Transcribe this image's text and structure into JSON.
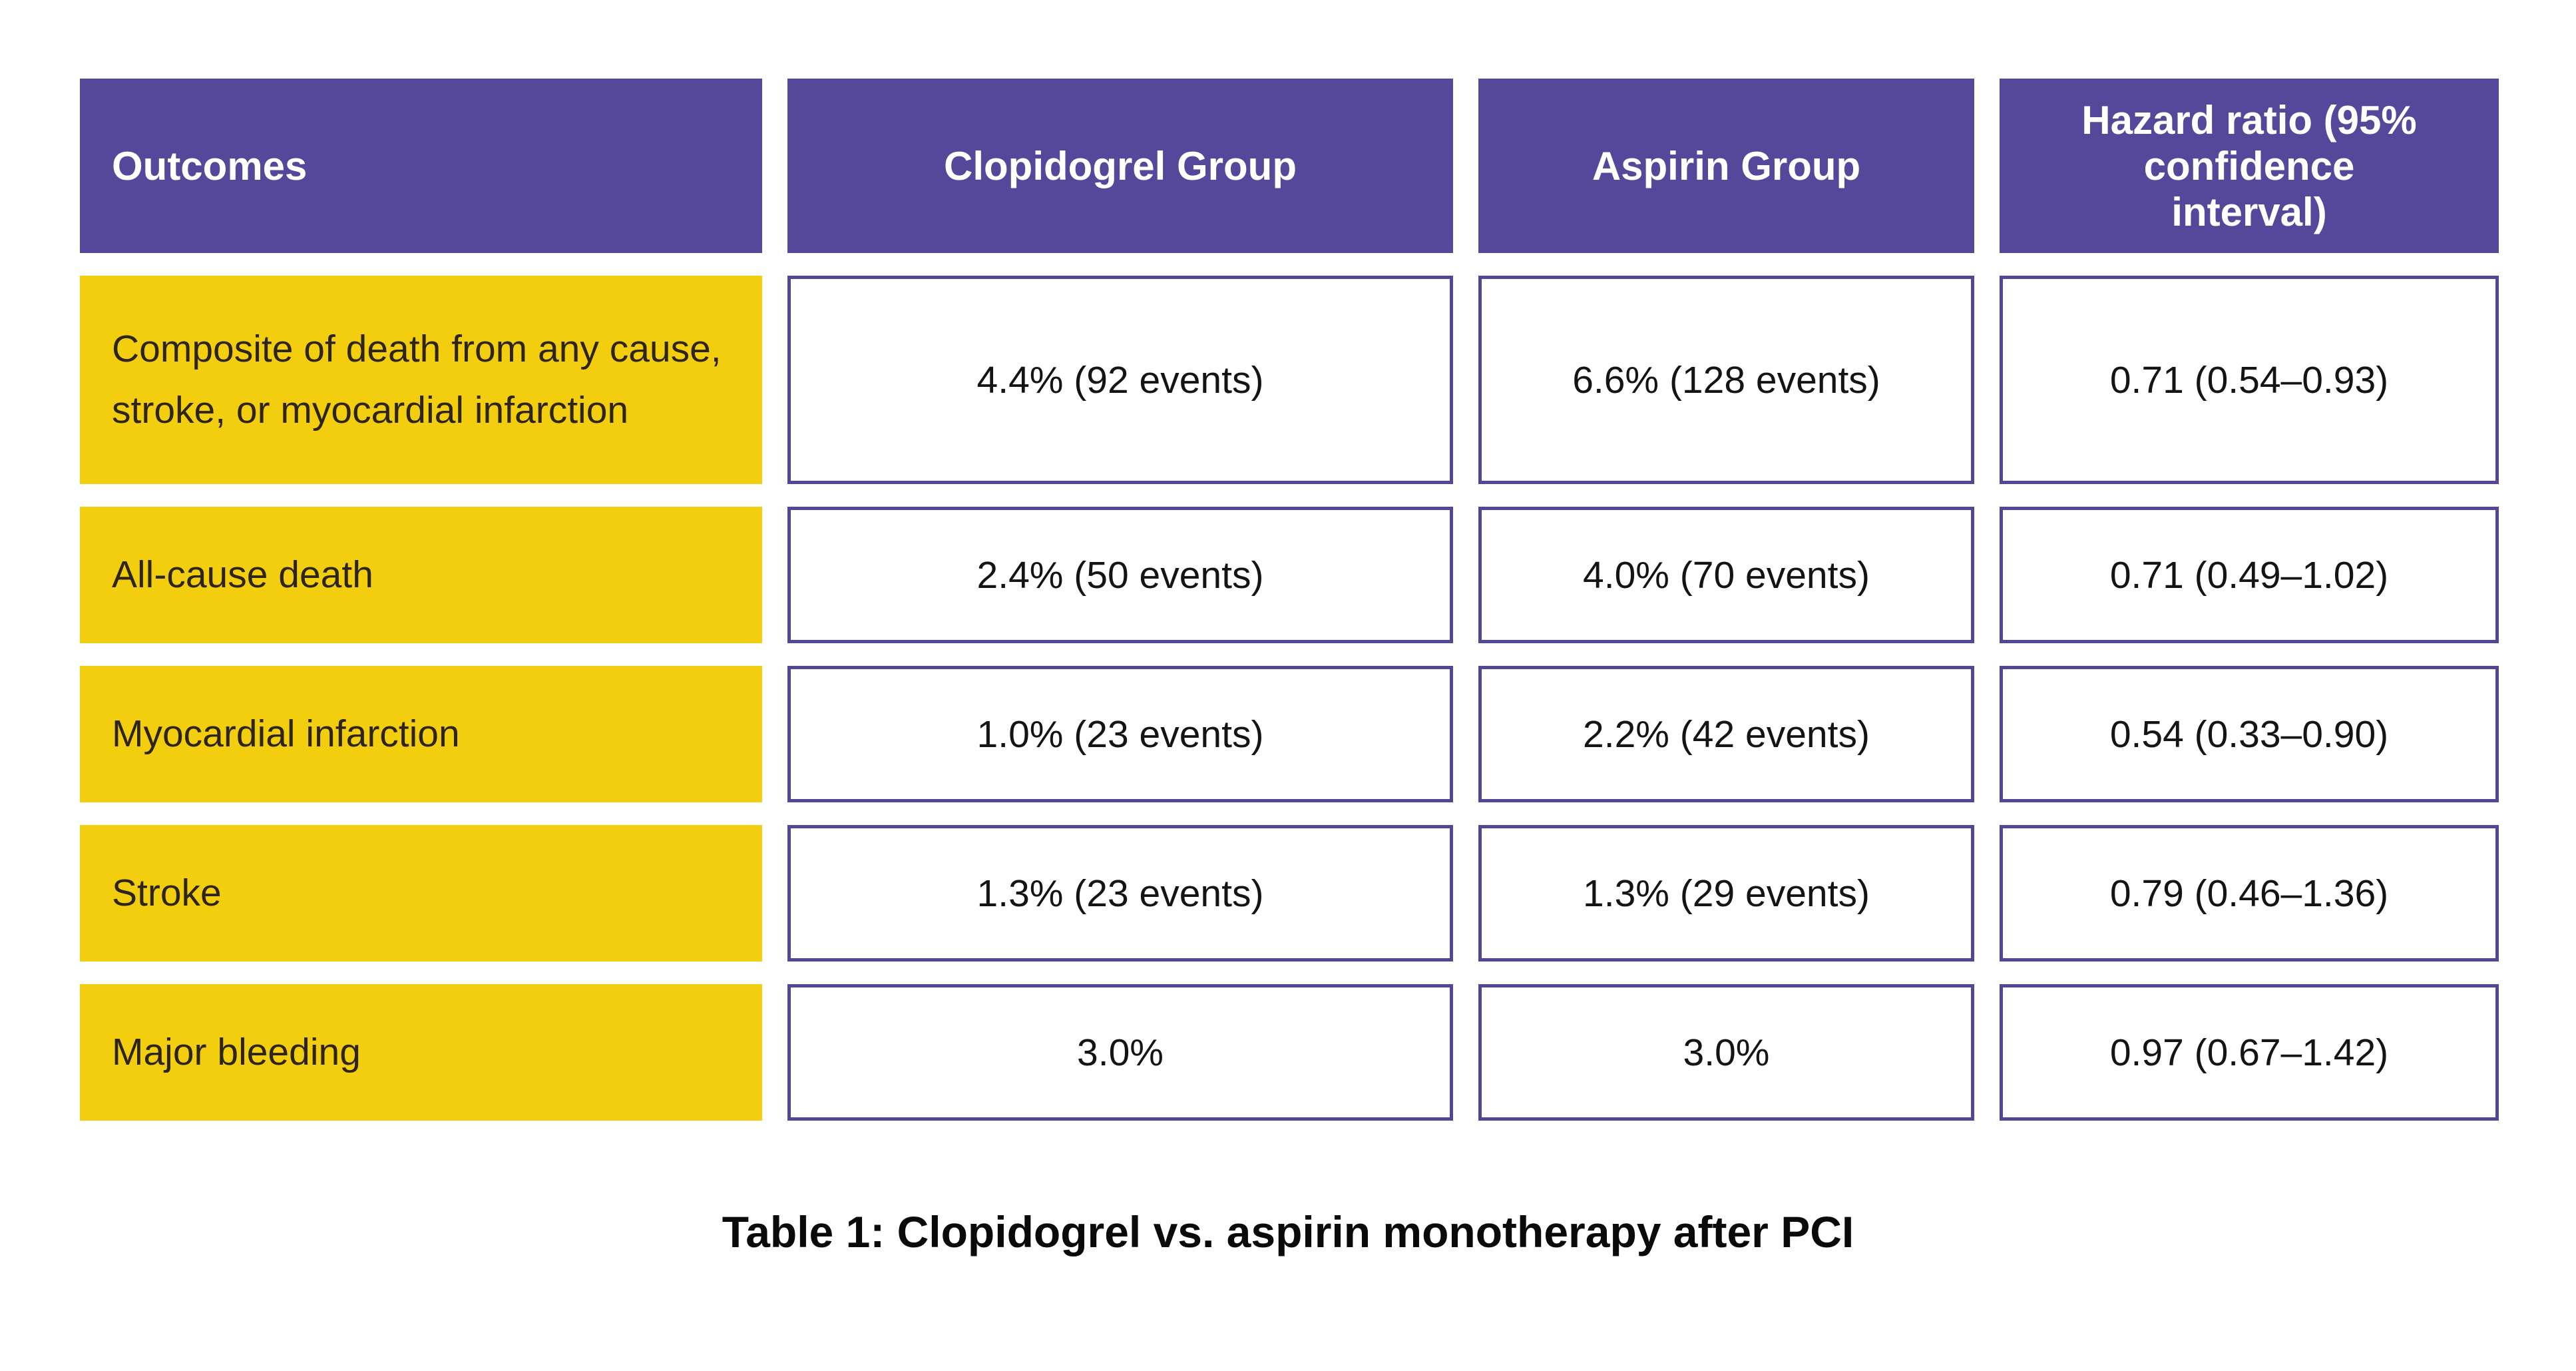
{
  "colors": {
    "header_background": "#55489B",
    "header_text": "#FFFFFF",
    "outcome_cell_background": "#F3CE0F",
    "outcome_cell_text": "#2F2517",
    "value_cell_border": "#524695",
    "value_cell_background": "#FFFFFF",
    "value_cell_text": "#141414",
    "page_background": "#FFFFFF"
  },
  "table": {
    "columns": [
      "Outcomes",
      "Clopidogrel Group",
      "Aspirin Group",
      "Hazard ratio (95% confidence interval)"
    ],
    "rows": [
      {
        "outcome": "Composite of death from any cause, stroke, or myocardial infarction",
        "clopidogrel": "4.4% (92 events)",
        "aspirin": "6.6% (128 events)",
        "hazard_ratio": "0.71 (0.54–0.93)"
      },
      {
        "outcome": "All-cause death",
        "clopidogrel": "2.4% (50 events)",
        "aspirin": "4.0% (70 events)",
        "hazard_ratio": "0.71 (0.49–1.02)"
      },
      {
        "outcome": "Myocardial infarction",
        "clopidogrel": "1.0% (23 events)",
        "aspirin": "2.2% (42 events)",
        "hazard_ratio": "0.54 (0.33–0.90)"
      },
      {
        "outcome": "Stroke",
        "clopidogrel": "1.3% (23 events)",
        "aspirin": "1.3% (29 events)",
        "hazard_ratio": "0.79 (0.46–1.36)"
      },
      {
        "outcome": "Major bleeding",
        "clopidogrel": "3.0%",
        "aspirin": "3.0%",
        "hazard_ratio": "0.97 (0.67–1.42)"
      }
    ]
  },
  "caption": "Table 1: Clopidogrel vs. aspirin monotherapy after PCI"
}
